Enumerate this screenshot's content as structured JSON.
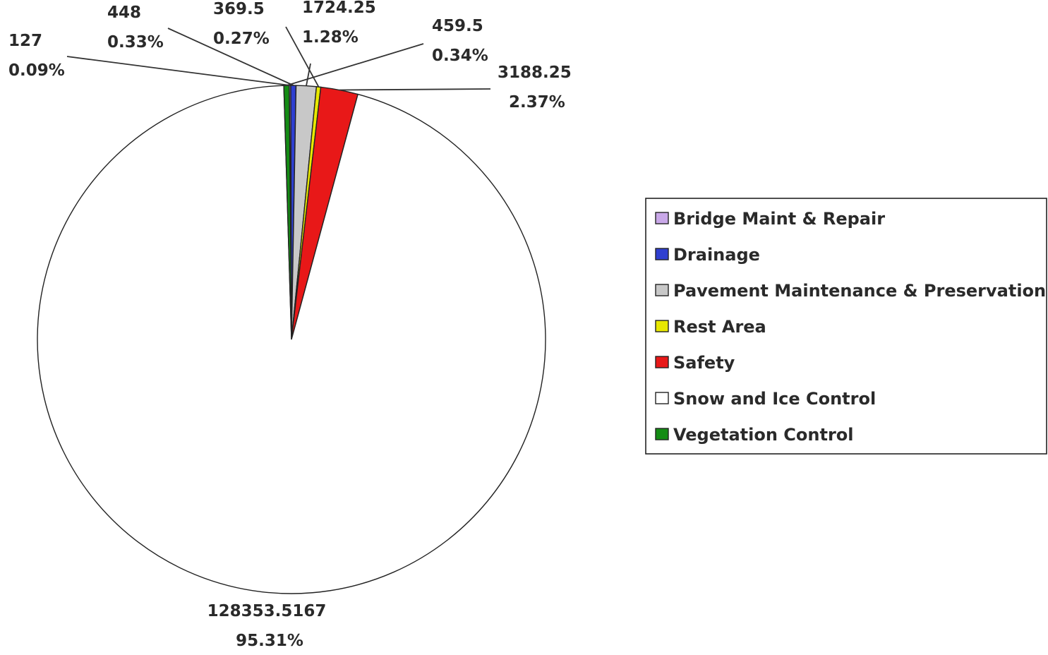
{
  "chart_data": {
    "type": "pie",
    "title": "",
    "legend_position": "right",
    "categories": [
      "Bridge Maint & Repair",
      "Drainage",
      "Pavement Maintenance & Preservation",
      "Rest Area",
      "Safety",
      "Snow and Ice Control",
      "Vegetation Control"
    ],
    "values": [
      127,
      448,
      1724.25,
      369.5,
      3188.25,
      128353.5167,
      459.5
    ],
    "value_labels": [
      "127",
      "448",
      "1724.25",
      "369.5",
      "3188.25",
      "128353.5167",
      "459.5"
    ],
    "percent_labels": [
      "0.09%",
      "0.33%",
      "1.28%",
      "0.27%",
      "2.37%",
      "95.31%",
      "0.34%"
    ],
    "colors": [
      "#c9a8e8",
      "#2f3fd0",
      "#c8c8c8",
      "#e8e800",
      "#e81818",
      "#ffffff",
      "#148c14"
    ]
  }
}
